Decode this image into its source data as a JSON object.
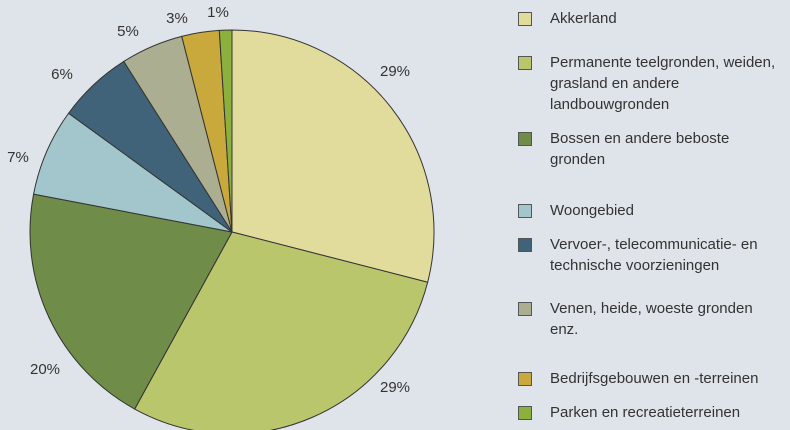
{
  "chart_data": {
    "type": "pie",
    "categories": [
      "Akkerland",
      "Permanente teelgronden, weiden, grasland en andere landbouwgronden",
      "Bossen en andere beboste gronden",
      "Woongebied",
      "Vervoer-, telecommunicatie- en technische voorzieningen",
      "Venen, heide, woeste gronden enz.",
      "Bedrijfsgebouwen en -terreinen",
      "Parken en recreatieterreinen"
    ],
    "values": [
      29,
      29,
      20,
      7,
      6,
      5,
      3,
      1
    ],
    "value_labels": [
      "29%",
      "29%",
      "20%",
      "7%",
      "6%",
      "5%",
      "3%",
      "1%"
    ],
    "colors": [
      "#e2dc9c",
      "#bac66c",
      "#6f8c48",
      "#a2c6cb",
      "#416379",
      "#abae90",
      "#c9a83c",
      "#8bb13c"
    ]
  }
}
